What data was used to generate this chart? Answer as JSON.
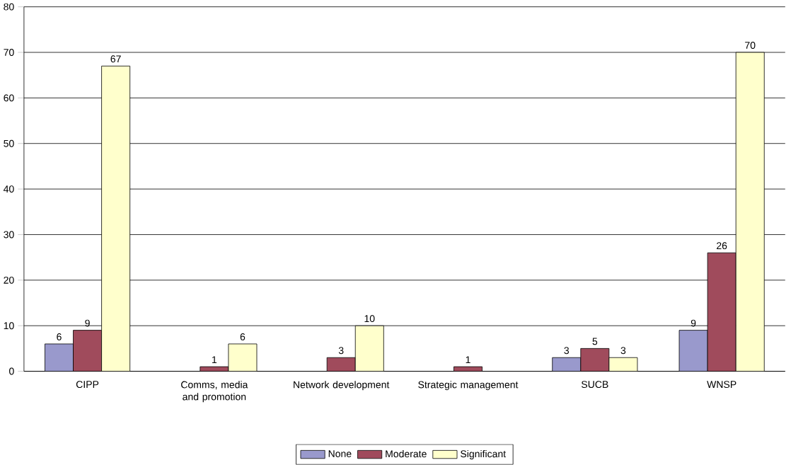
{
  "chart_data": {
    "type": "bar",
    "categories": [
      "CIPP",
      "Comms, media and promotion",
      "Network development",
      "Strategic management",
      "SUCB",
      "WNSP"
    ],
    "series": [
      {
        "name": "None",
        "color": "#9999cc",
        "values": [
          6,
          null,
          null,
          null,
          3,
          9
        ]
      },
      {
        "name": "Moderate",
        "color": "#a04b5c",
        "values": [
          9,
          1,
          3,
          1,
          5,
          26
        ]
      },
      {
        "name": "Significant",
        "color": "#ffffcc",
        "values": [
          67,
          6,
          10,
          null,
          3,
          70
        ]
      }
    ],
    "ylim": [
      0,
      80
    ],
    "yticks": [
      0,
      10,
      20,
      30,
      40,
      50,
      60,
      70,
      80
    ],
    "grid": "y",
    "legend": "bottom",
    "data_labels": true
  }
}
